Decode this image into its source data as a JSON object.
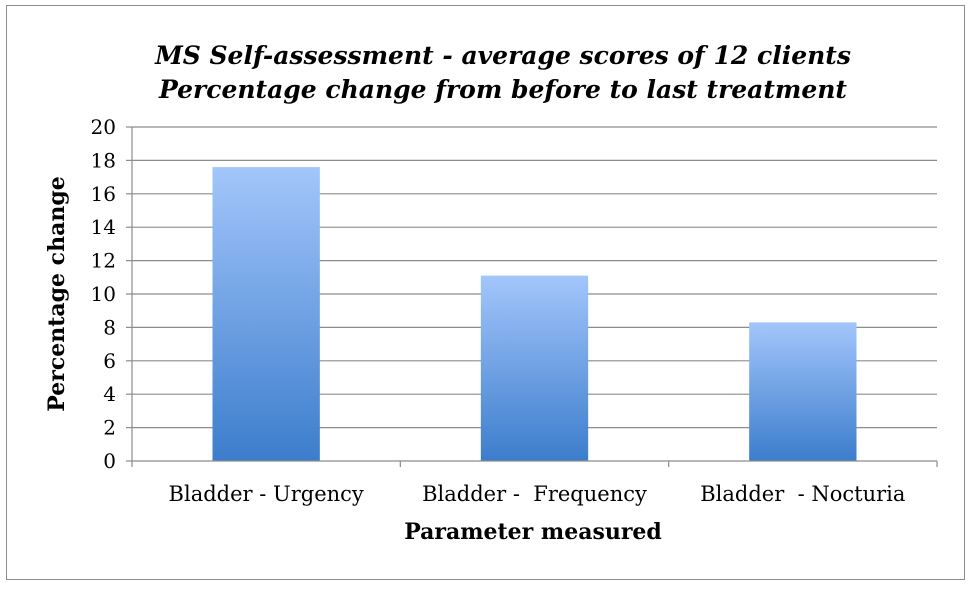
{
  "chart_data": {
    "type": "bar",
    "title": "MS  Self-assessment - average scores of 12 clients",
    "subtitle": "Percentage change from before to last treatment",
    "xlabel": "Parameter measured",
    "ylabel": "Percentage change",
    "categories": [
      "Bladder - Urgency",
      "Bladder -  Frequency",
      "Bladder  - Nocturia"
    ],
    "values": [
      17.6,
      11.1,
      8.3
    ],
    "ylim": [
      0,
      20
    ],
    "yticks": [
      "0",
      "2",
      "4",
      "6",
      "8",
      "10",
      "12",
      "14",
      "16",
      "18",
      "20"
    ],
    "grid": true,
    "legend": "none",
    "colors": {
      "bar_top": "#a3c6fb",
      "bar_bottom": "#3c7dcc",
      "grid": "#8c8c8c",
      "frame": "#8c8c8c"
    }
  }
}
